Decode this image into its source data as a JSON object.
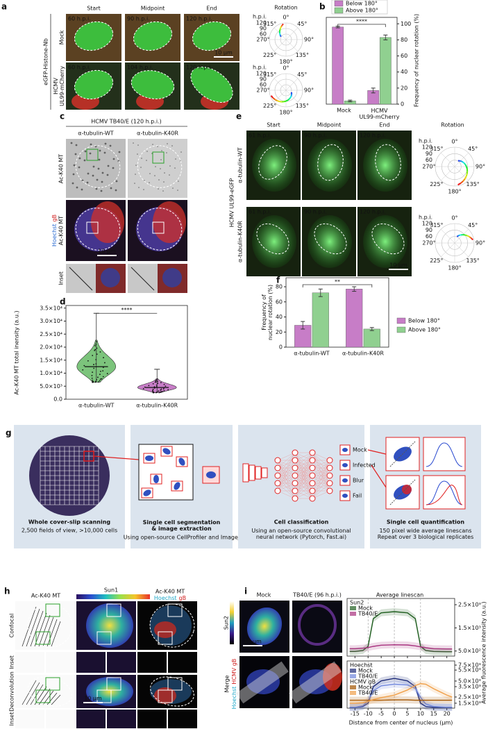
{
  "figure": {
    "a": {
      "label": "a",
      "columns": [
        "Start",
        "Midpoint",
        "End"
      ],
      "rows": [
        "Mock",
        "HCMV\nUL99-mCherry"
      ],
      "channel": "eGFP-Histone-Nb",
      "timestamps": [
        [
          "60 h.p.i.",
          "90 h.p.i.",
          "120 h.p.i."
        ],
        [
          "60 h.p.i.",
          "104 h.p.i.",
          "120 h.p.i."
        ]
      ],
      "scale_bar": "10 µm",
      "polar": {
        "title": "Rotation",
        "radial_title": "h.p.i.",
        "radial_ticks": [
          120,
          90,
          60
        ],
        "angles": [
          "0°",
          "45°",
          "90°",
          "135°",
          "180°",
          "225°",
          "270°",
          "315°"
        ]
      }
    },
    "b": {
      "label": "b"
    },
    "c": {
      "label": "c",
      "title": "HCMV TB40/E (120 h.p.i.)",
      "columns": [
        "α-tubulin-WT",
        "α-tubulin-K40R"
      ],
      "rows": {
        "gray": "Ac-K40 MT",
        "merge": [
          "Hoechst",
          "gB",
          "Ac-K40 MT"
        ],
        "inset": "Inset"
      },
      "scale_bar": "10 µm"
    },
    "d": {
      "label": "d"
    },
    "e": {
      "label": "e",
      "columns": [
        "Start",
        "Midpoint",
        "End",
        "Rotation"
      ],
      "rows": [
        "α-tubulin-WT",
        "α-tubulin-K40R"
      ],
      "channel": "HCMV UL99-eGFP",
      "timestamps": [
        [
          "61 h.p.i.",
          "90 h.p.i.",
          "120 h.p.i."
        ],
        [
          "61 h.p.i.",
          "90 h.p.i.",
          "120 h.p.i."
        ]
      ],
      "scale_bar": "10 µm",
      "polar": {
        "radial_title": "h.p.i.",
        "radial_ticks": [
          120,
          90,
          60
        ],
        "angles": [
          "0°",
          "45°",
          "90°",
          "135°",
          "180°",
          "225°",
          "270°",
          "315°"
        ]
      }
    },
    "f": {
      "label": "f"
    },
    "g": {
      "label": "g",
      "steps": [
        {
          "title": "Whole cover-slip scanning",
          "text": "2,500 fields of view, >10,000 cells"
        },
        {
          "title": "Single cell segmentation\n& image extraction",
          "text": "Using open-source CellProfiler and ImageJ"
        },
        {
          "title": "Cell classification",
          "text": "Using an open-source convolutional\nneural network (Pytorch, Fast.ai)"
        },
        {
          "title": "Single cell quantification",
          "text": "150 pixel wide average linescans\nRepeat over 3 biological replicates"
        }
      ],
      "classes": [
        "Mock",
        "Infected",
        "Blur",
        "Fail"
      ]
    },
    "h": {
      "label": "h",
      "tubulin": "Ac-K40 MT",
      "sun": "Sun1",
      "merge": [
        "Ac-K40 MT",
        "Hoechst",
        "gB"
      ],
      "rows": [
        "Confocal",
        "Inset",
        "Deconvolution",
        "Inset"
      ],
      "scale_bar": "10 µm"
    },
    "i": {
      "label": "i",
      "columns": [
        "Mock",
        "TB40/E (96 h.p.i.)",
        "Average linescan"
      ],
      "rows": {
        "sun": "Sun2",
        "merge": [
          "Merge",
          "Hoechst",
          "HCMV gB"
        ]
      },
      "scale_bar": "10 µm"
    }
  },
  "chart_data": [
    {
      "type": "bar",
      "categories": [
        "Mock",
        "HCMV\nUL99-mCherry"
      ],
      "series": [
        {
          "name": "Below 180°",
          "color": "#c77dc7",
          "values": [
            96,
            17
          ],
          "errors": [
            1,
            3
          ]
        },
        {
          "name": "Above 180°",
          "color": "#90d090",
          "values": [
            4,
            83
          ],
          "errors": [
            1,
            3
          ]
        }
      ],
      "ylabel": "Frequency of nuclear rotation (%)",
      "ylim": [
        0,
        108
      ],
      "yticks": [
        0,
        20,
        40,
        60,
        80,
        100
      ],
      "annotation": "****"
    },
    {
      "type": "violin",
      "categories": [
        "α-tubulin-WT",
        "α-tubulin-K40R"
      ],
      "colors": [
        "#7cc47c",
        "#c77dc7"
      ],
      "medians": [
        12500,
        4500
      ],
      "whisker_low": [
        6500,
        2500
      ],
      "whisker_high": [
        33000,
        11500
      ],
      "ylabel": "Ac-K40 MT total inensity (a.u.)",
      "ylim": [
        0,
        36000
      ],
      "yticks": [
        {
          "value": 0,
          "label": "0.0"
        },
        {
          "value": 5000,
          "label": "5.0×10³"
        },
        {
          "value": 10000,
          "label": "1.0×10⁴"
        },
        {
          "value": 15000,
          "label": "1.5×10⁴"
        },
        {
          "value": 20000,
          "label": "2.0×10⁴"
        },
        {
          "value": 25000,
          "label": "2.5×10⁴"
        },
        {
          "value": 30000,
          "label": "3.0×10⁴"
        },
        {
          "value": 35000,
          "label": "3.5×10⁴"
        }
      ],
      "annotation": "****"
    },
    {
      "type": "bar",
      "categories": [
        "α-tubulin-WT",
        "α-tubulin-K40R"
      ],
      "series": [
        {
          "name": "Below 180°",
          "color": "#c77dc7",
          "values": [
            29,
            77
          ],
          "errors": [
            5,
            3
          ]
        },
        {
          "name": "Above 180°",
          "color": "#90d090",
          "values": [
            72,
            24
          ],
          "errors": [
            5,
            2
          ]
        }
      ],
      "ylabel": "Frequency of\nnuclear rotation (%)",
      "ylim": [
        0,
        92
      ],
      "yticks": [
        0,
        20,
        40,
        60,
        80
      ],
      "annotation": "**"
    },
    {
      "type": "line",
      "legend_titles": [
        "Sun2"
      ],
      "x": [
        -17,
        -15,
        -12,
        -10,
        -8,
        -5,
        0,
        5,
        8,
        10,
        12,
        15,
        20,
        22
      ],
      "series": [
        {
          "name": "Mock",
          "color": "#1f5e1f",
          "values": [
            480,
            480,
            520,
            700,
            1900,
            2150,
            2200,
            2150,
            1900,
            700,
            520,
            480,
            470,
            470
          ]
        },
        {
          "name": "TB40/E",
          "color": "#a8327f",
          "values": [
            600,
            600,
            620,
            650,
            700,
            750,
            770,
            760,
            720,
            680,
            640,
            600,
            590,
            590
          ]
        }
      ],
      "ylabel": "Average fluorescence intensity (a.u.)",
      "xlim": [
        -18,
        23
      ],
      "xticks": [
        -15,
        -10,
        -5,
        0,
        5,
        10,
        15,
        20
      ],
      "xtick_labels": false,
      "ylim": [
        280,
        2770
      ],
      "yticks": [
        {
          "value": 500,
          "label": "5.0×10²"
        },
        {
          "value": 1500,
          "label": "1.5×10³"
        },
        {
          "value": 2500,
          "label": "2.5×10³"
        }
      ]
    },
    {
      "type": "line",
      "legend_titles": [
        "Hoechst",
        "HCMV gB"
      ],
      "x": [
        -17,
        -15,
        -12,
        -10,
        -8,
        -5,
        0,
        5,
        8,
        10,
        12,
        15,
        20,
        22
      ],
      "series": [
        {
          "name": "Mock",
          "color": "#1c2a78",
          "values": [
            1000,
            1000,
            1100,
            1500,
            3500,
            4200,
            4500,
            4200,
            3500,
            1500,
            1100,
            1000,
            1000,
            1000
          ]
        },
        {
          "name": "TB40/E",
          "color": "#6f86dc",
          "values": [
            1000,
            1000,
            1200,
            1800,
            3000,
            3600,
            3800,
            3700,
            3300,
            2200,
            1400,
            1100,
            1000,
            1000
          ]
        },
        {
          "name": "Mock",
          "color": "#a35400",
          "axis": "y2",
          "values": [
            2000,
            2000,
            2000,
            2000,
            2000,
            2000,
            2050,
            2050,
            2000,
            2000,
            2000,
            2000,
            2000,
            2000
          ]
        },
        {
          "name": "TB40/E",
          "color": "#f0a04a",
          "axis": "y2",
          "values": [
            1500,
            1500,
            1600,
            1800,
            2100,
            2400,
            2800,
            3600,
            4300,
            4600,
            4500,
            3800,
            2800,
            2500
          ]
        }
      ],
      "xlabel": "Distance from center of nucleus (µm)",
      "xlim": [
        -18,
        23
      ],
      "xticks": [
        -15,
        -10,
        -5,
        0,
        5,
        10,
        15,
        20
      ],
      "xtick_labels": true,
      "ylim": [
        900,
        6600
      ],
      "ytick_color": "#3b4cc0",
      "yticks": [
        {
          "value": 1500,
          "label": "1.5×10³"
        },
        {
          "value": 3500,
          "label": "3.5×10³"
        },
        {
          "value": 5500,
          "label": "5.5×10³"
        }
      ],
      "y2lim": [
        750,
        8150
      ],
      "y2tick_color": "#e08a1e",
      "y2ticks": [
        {
          "value": 2500,
          "label": "2.5×10³"
        },
        {
          "value": 5000,
          "label": "5.0×10³"
        },
        {
          "value": 7500,
          "label": "7.5×10³"
        }
      ]
    }
  ]
}
